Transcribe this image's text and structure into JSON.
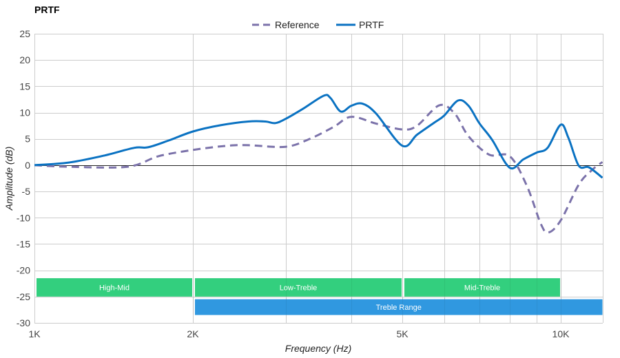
{
  "chart_data": {
    "type": "line",
    "title": "PRTF",
    "xlabel": "Frequency (Hz)",
    "ylabel": "Amplitude (dB)",
    "xscale": "log",
    "xlim": [
      1000,
      12000
    ],
    "ylim": [
      -30,
      25
    ],
    "grid": true,
    "legend_position": "top-center",
    "x_ticks": [
      {
        "value": 1000,
        "label": "1K"
      },
      {
        "value": 2000,
        "label": "2K"
      },
      {
        "value": 5000,
        "label": "5K"
      },
      {
        "value": 10000,
        "label": "10K"
      }
    ],
    "x_minor_grid": [
      3000,
      4000,
      6000,
      7000,
      8000,
      9000
    ],
    "y_ticks": [
      25,
      20,
      15,
      10,
      5,
      0,
      -5,
      -10,
      -15,
      -20,
      -25,
      -30
    ],
    "series": [
      {
        "name": "Reference",
        "style": "dashed",
        "color": "#7b72aa",
        "points": [
          [
            1000,
            0
          ],
          [
            1162,
            -0.3
          ],
          [
            1503,
            -0.3
          ],
          [
            1720,
            1.7
          ],
          [
            2000,
            2.9
          ],
          [
            2325,
            3.7
          ],
          [
            2549,
            3.8
          ],
          [
            3000,
            3.5
          ],
          [
            3335,
            5.0
          ],
          [
            3705,
            7.3
          ],
          [
            4000,
            9.2
          ],
          [
            4460,
            7.9
          ],
          [
            5000,
            6.8
          ],
          [
            5333,
            7.5
          ],
          [
            5880,
            11.4
          ],
          [
            6290,
            9.8
          ],
          [
            6680,
            5.5
          ],
          [
            7310,
            2.0
          ],
          [
            8000,
            1.7
          ],
          [
            8620,
            -3.9
          ],
          [
            9160,
            -11.1
          ],
          [
            9470,
            -12.8
          ],
          [
            10000,
            -10.5
          ],
          [
            10820,
            -3.7
          ],
          [
            11470,
            -0.9
          ],
          [
            12000,
            0.6
          ]
        ]
      },
      {
        "name": "PRTF",
        "style": "solid",
        "color": "#0a72c2",
        "points": [
          [
            1000,
            0.0
          ],
          [
            1162,
            0.5
          ],
          [
            1352,
            1.8
          ],
          [
            1548,
            3.3
          ],
          [
            1644,
            3.4
          ],
          [
            1800,
            4.7
          ],
          [
            2000,
            6.4
          ],
          [
            2257,
            7.6
          ],
          [
            2549,
            8.3
          ],
          [
            2747,
            8.3
          ],
          [
            2869,
            8.0
          ],
          [
            3000,
            8.8
          ],
          [
            3235,
            10.7
          ],
          [
            3543,
            13.2
          ],
          [
            3650,
            12.8
          ],
          [
            3820,
            10.2
          ],
          [
            4000,
            11.3
          ],
          [
            4200,
            11.7
          ],
          [
            4460,
            9.8
          ],
          [
            5000,
            3.7
          ],
          [
            5333,
            5.8
          ],
          [
            5750,
            8.1
          ],
          [
            6000,
            9.4
          ],
          [
            6380,
            12.3
          ],
          [
            6680,
            11.3
          ],
          [
            7000,
            8.0
          ],
          [
            7410,
            4.8
          ],
          [
            8000,
            -0.5
          ],
          [
            8490,
            1.1
          ],
          [
            9000,
            2.4
          ],
          [
            9440,
            3.3
          ],
          [
            10000,
            7.7
          ],
          [
            10340,
            5.2
          ],
          [
            10820,
            -0.1
          ],
          [
            11310,
            -0.4
          ],
          [
            12000,
            -2.4
          ]
        ]
      }
    ],
    "bands": [
      {
        "label": "High-Mid",
        "from": 1000,
        "to": 2000,
        "y_top": -21.5,
        "y_bottom": -25,
        "color": "#33cf7e"
      },
      {
        "label": "Low-Treble",
        "from": 2000,
        "to": 5000,
        "y_top": -21.5,
        "y_bottom": -25,
        "color": "#33cf7e"
      },
      {
        "label": "Mid-Treble",
        "from": 5000,
        "to": 10000,
        "y_top": -21.5,
        "y_bottom": -25,
        "color": "#33cf7e"
      },
      {
        "label": "Treble Range",
        "from": 2000,
        "to": 12000,
        "y_top": -25.5,
        "y_bottom": -28.5,
        "color": "#3098e0"
      }
    ]
  }
}
